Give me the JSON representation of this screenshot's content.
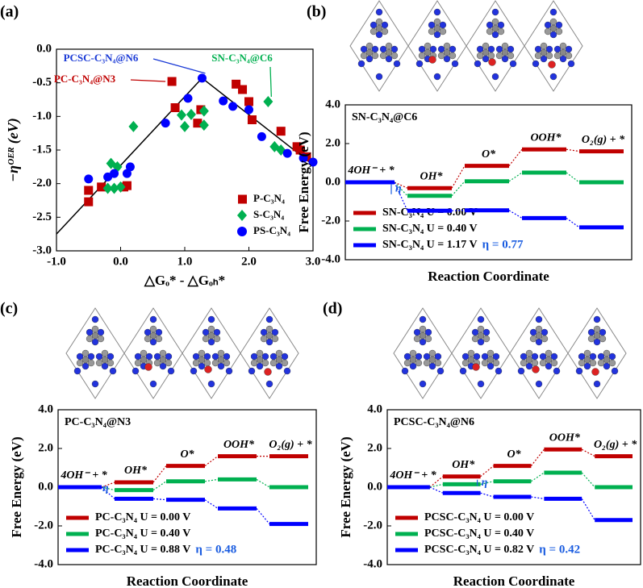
{
  "chart_data": [
    {
      "type": "scatter",
      "panel": "(a)",
      "ylabel": "−ηᴼᴱᴿ (eV)",
      "xlabel": "△Gₒ* - △Gₒₕ*",
      "xlim": [
        -1,
        3
      ],
      "ylim": [
        -3,
        0
      ],
      "xticks": [
        {
          "value": -1,
          "label": "-1.0"
        },
        {
          "value": 0,
          "label": "0.0"
        },
        {
          "value": 1,
          "label": "1.0"
        },
        {
          "value": 2,
          "label": "2.0"
        },
        {
          "value": 3,
          "label": "3.0"
        }
      ],
      "yticks": [
        {
          "value": 0,
          "label": "0.0"
        },
        {
          "value": -0.5,
          "label": "-0.5"
        },
        {
          "value": -1,
          "label": "-1.0"
        },
        {
          "value": -1.5,
          "label": "-1.5"
        },
        {
          "value": -2,
          "label": "-2.0"
        },
        {
          "value": -2.5,
          "label": "-2.5"
        },
        {
          "value": -3,
          "label": "-3.0"
        }
      ],
      "annotations": [
        "PCSC-C₃N₄@N6",
        "SN-C₃N₄@C6",
        "PC-C₃N₄@N3"
      ],
      "volcano": {
        "x": [
          -1,
          1.27,
          3
        ],
        "values": [
          -2.75,
          -0.43,
          -1.72
        ]
      },
      "series": [
        {
          "name": "P-C₃N₄",
          "color": "#c00000",
          "marker": "square",
          "x": [
            -0.5,
            -0.5,
            -0.3,
            0.05,
            0.1,
            0.8,
            0.85,
            1.2,
            1.25,
            1.8,
            1.9,
            2.0,
            2.05,
            2.5,
            2.75,
            2.8,
            2.9
          ],
          "values": [
            -2.27,
            -2.1,
            -2.05,
            -2.05,
            -2.03,
            -0.48,
            -0.87,
            -1.1,
            -0.9,
            -0.52,
            -0.6,
            -0.78,
            -1.05,
            -1.22,
            -1.45,
            -1.5,
            -1.6
          ]
        },
        {
          "name": "S-C₃N₄",
          "color": "#00b050",
          "marker": "diamond",
          "x": [
            -0.15,
            -0.05,
            -0.2,
            -0.1,
            0.0,
            0.2,
            0.95,
            1.0,
            1.1,
            1.3,
            1.3,
            2.3,
            2.4,
            2.5
          ],
          "values": [
            -1.7,
            -1.75,
            -2.07,
            -2.07,
            -2.05,
            -1.15,
            -0.98,
            -1.15,
            -0.97,
            -0.92,
            -1.13,
            -0.78,
            -1.45,
            -1.5
          ]
        },
        {
          "name": "PS-C₃N₄",
          "color": "#0000ff",
          "marker": "circle",
          "x": [
            -0.5,
            -0.2,
            -0.1,
            0.1,
            0.15,
            0.7,
            1.05,
            1.27,
            1.6,
            1.75,
            2.0,
            2.2,
            2.6,
            2.85,
            3.0
          ],
          "values": [
            -1.93,
            -1.9,
            -1.85,
            -1.85,
            -1.75,
            -1.1,
            -0.73,
            -0.43,
            -0.77,
            -0.85,
            -0.9,
            -1.3,
            -1.55,
            -1.62,
            -1.68
          ]
        }
      ]
    },
    {
      "type": "energy",
      "panel": "(b)",
      "title": "SN-C₃N₄@C6",
      "ylabel": "Free Energy (eV)",
      "xlabel": "Reaction Coordinate",
      "ylim": [
        -4,
        4
      ],
      "yticks": [
        {
          "value": 4,
          "label": "4.0"
        },
        {
          "value": 2,
          "label": "2.0"
        },
        {
          "value": 0,
          "label": "0.0"
        },
        {
          "value": -2,
          "label": "-2.0"
        },
        {
          "value": -4,
          "label": "-4.0"
        }
      ],
      "categories": [
        "4OH⁻ + *",
        "OH*",
        "O*",
        "OOH*",
        "O₂(g) + *"
      ],
      "eta_symbol": "η",
      "eta_label": "η = 0.77",
      "series": [
        {
          "name": "SN-C₃N₄ U = 0.00 V",
          "color": "#c00000",
          "values": [
            0,
            -0.3,
            0.85,
            1.7,
            1.6
          ]
        },
        {
          "name": "SN-C₃N₄ U = 0.40 V",
          "color": "#00b050",
          "values": [
            0,
            -0.7,
            0.05,
            0.5,
            0
          ]
        },
        {
          "name": "SN-C₃N₄ U = 1.17 V",
          "color": "#0000ff",
          "values": [
            0,
            -1.47,
            -1.45,
            -1.85,
            -2.33
          ]
        }
      ]
    },
    {
      "type": "energy",
      "panel": "(c)",
      "title": "PC-C₃N₄@N3",
      "ylabel": "Free Energy (eV)",
      "xlabel": "Reaction Coordinate",
      "ylim": [
        -4,
        4
      ],
      "yticks": [
        {
          "value": 4,
          "label": "4.0"
        },
        {
          "value": 2,
          "label": "2.0"
        },
        {
          "value": 0,
          "label": "0.0"
        },
        {
          "value": -2,
          "label": "-2.0"
        },
        {
          "value": -4,
          "label": "-4.0"
        }
      ],
      "categories": [
        "4OH⁻ + *",
        "OH*",
        "O*",
        "OOH*",
        "O₂(g) + *"
      ],
      "eta_symbol": "η",
      "eta_label": "η = 0.48",
      "series": [
        {
          "name": "PC-C₃N₄ U = 0.00 V",
          "color": "#c00000",
          "values": [
            0,
            0.25,
            1.1,
            1.6,
            1.6
          ]
        },
        {
          "name": "PC-C₃N₄ U = 0.40 V",
          "color": "#00b050",
          "values": [
            0,
            -0.15,
            0.3,
            0.4,
            0
          ]
        },
        {
          "name": "PC-C₃N₄ U = 0.88 V",
          "color": "#0000ff",
          "values": [
            0,
            -0.6,
            -0.65,
            -1.1,
            -1.9
          ]
        }
      ]
    },
    {
      "type": "energy",
      "panel": "(d)",
      "title": "PCSC-C₃N₄@N6",
      "ylabel": "Free Energy (eV)",
      "xlabel": "Reaction Coordinate",
      "ylim": [
        -4,
        4
      ],
      "yticks": [
        {
          "value": 4,
          "label": "4.0"
        },
        {
          "value": 2,
          "label": "2.0"
        },
        {
          "value": 0,
          "label": "0.0"
        },
        {
          "value": -2,
          "label": "-2.0"
        },
        {
          "value": -4,
          "label": "-4.0"
        }
      ],
      "categories": [
        "4OH⁻ + *",
        "OH*",
        "O*",
        "OOH*",
        "O₂(g) + *"
      ],
      "eta_symbol": "η",
      "eta_label": "η = 0.42",
      "series": [
        {
          "name": "PCSC-C₃N₄ U = 0.00 V",
          "color": "#c00000",
          "values": [
            0,
            0.55,
            1.1,
            1.95,
            1.6
          ]
        },
        {
          "name": "PCSC-C₃N₄ U = 0.40 V",
          "color": "#00b050",
          "values": [
            0,
            0.15,
            0.3,
            0.75,
            0
          ]
        },
        {
          "name": "PCSC-C₃N₄ U = 0.82 V",
          "color": "#0000ff",
          "values": [
            0,
            -0.3,
            -0.5,
            -0.6,
            -1.7
          ]
        }
      ]
    }
  ]
}
